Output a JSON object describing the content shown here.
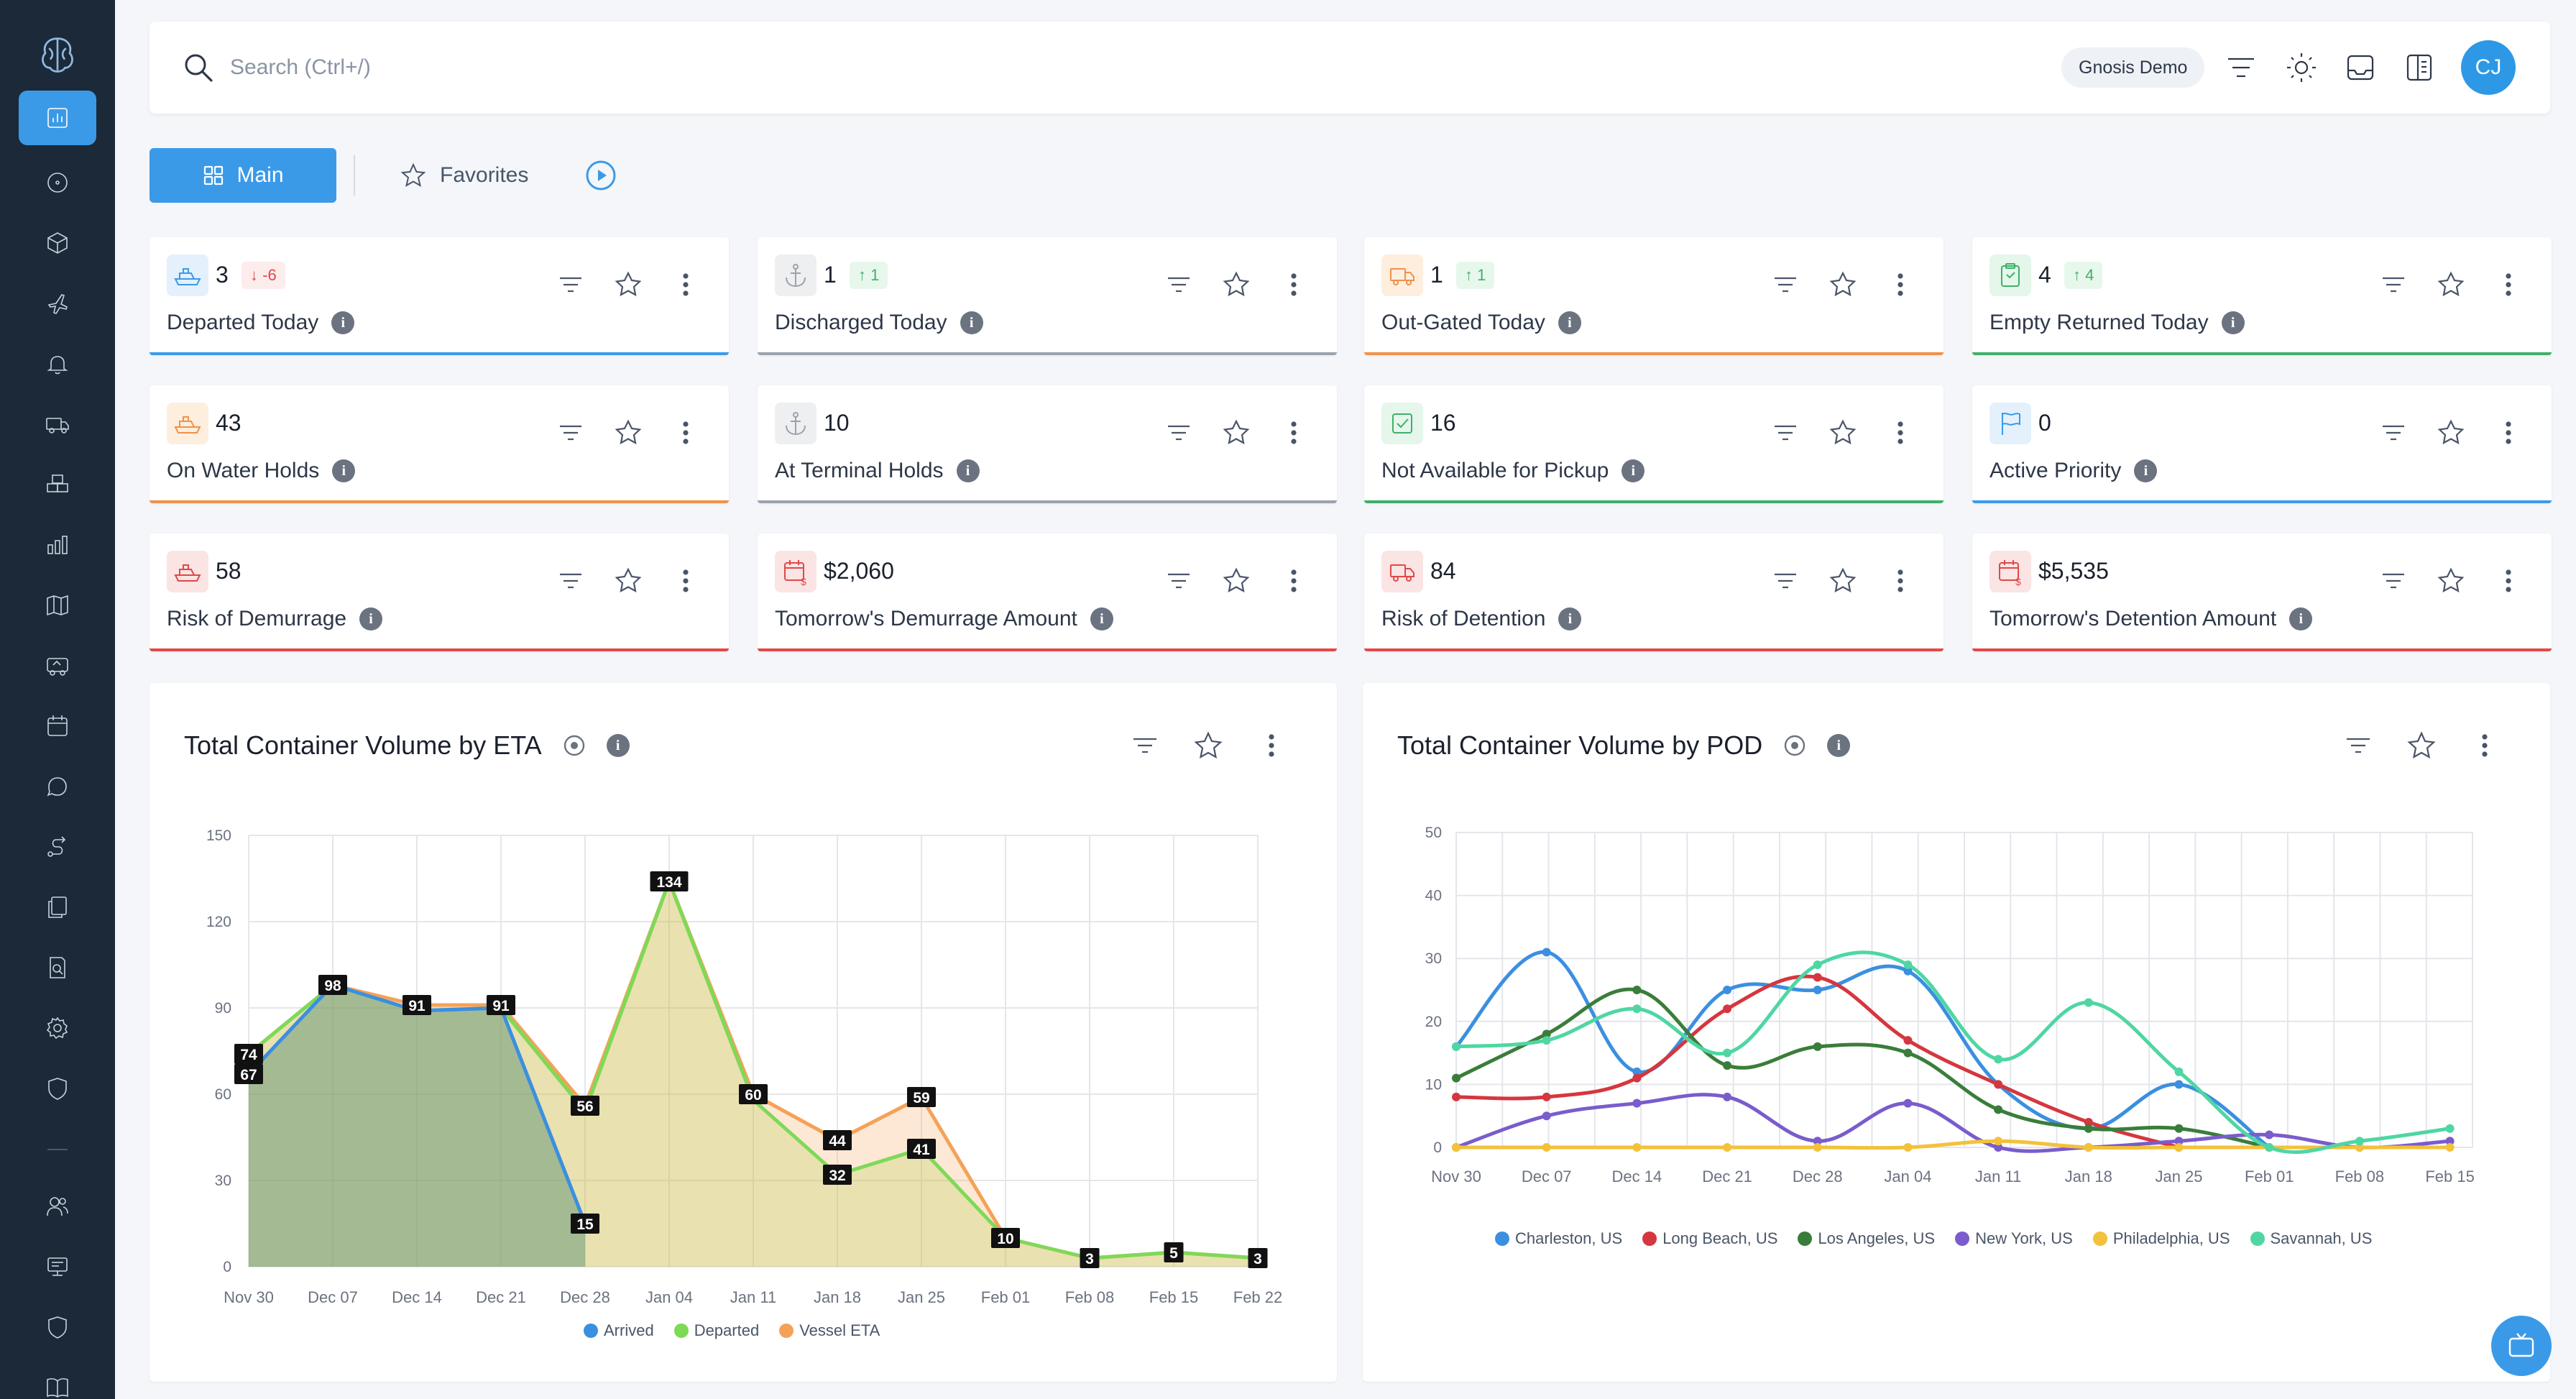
{
  "search": {
    "placeholder": "Search (Ctrl+/)"
  },
  "header": {
    "org": "Gnosis Demo",
    "avatar_initials": "CJ"
  },
  "tabs": {
    "main": "Main",
    "favorites": "Favorites"
  },
  "sidebar_icons": [
    "logo-brain-icon",
    "dashboard-icon",
    "compass-icon",
    "package-icon",
    "plane-icon",
    "bell-icon",
    "truck-icon",
    "containers-icon",
    "bar-chart-icon",
    "map-icon",
    "shipment-icon",
    "calendar-icon",
    "chat-icon",
    "route-icon",
    "documents-icon",
    "report-search-icon",
    "settings-icon",
    "shield-icon",
    "users-icon",
    "monitor-icon",
    "shield-check-icon",
    "book-icon"
  ],
  "kpis": [
    {
      "value": "3",
      "delta": "-6",
      "delta_dir": "down",
      "label": "Departed Today",
      "color": "#3b9ae8",
      "icon": "ship-icon"
    },
    {
      "value": "1",
      "delta": "1",
      "delta_dir": "up",
      "label": "Discharged Today",
      "color": "#9aa3ad",
      "icon": "anchor-icon"
    },
    {
      "value": "1",
      "delta": "1",
      "delta_dir": "up",
      "label": "Out-Gated Today",
      "color": "#f0914a",
      "icon": "truck-icon"
    },
    {
      "value": "4",
      "delta": "4",
      "delta_dir": "up",
      "label": "Empty Returned Today",
      "color": "#3fb06a",
      "icon": "clipboard-icon"
    },
    {
      "value": "43",
      "delta": "",
      "delta_dir": "",
      "label": "On Water Holds",
      "color": "#f0914a",
      "icon": "ship-icon"
    },
    {
      "value": "10",
      "delta": "",
      "delta_dir": "",
      "label": "At Terminal Holds",
      "color": "#9aa3ad",
      "icon": "anchor-icon"
    },
    {
      "value": "16",
      "delta": "",
      "delta_dir": "",
      "label": "Not Available for Pickup",
      "color": "#3fb06a",
      "icon": "checkbox-icon"
    },
    {
      "value": "0",
      "delta": "",
      "delta_dir": "",
      "label": "Active Priority",
      "color": "#3b9ae8",
      "icon": "flag-icon"
    },
    {
      "value": "58",
      "delta": "",
      "delta_dir": "",
      "label": "Risk of Demurrage",
      "color": "#e04848",
      "icon": "ship-icon"
    },
    {
      "value": "$2,060",
      "delta": "",
      "delta_dir": "",
      "label": "Tomorrow's Demurrage Amount",
      "color": "#e04848",
      "icon": "calendar-money-icon"
    },
    {
      "value": "84",
      "delta": "",
      "delta_dir": "",
      "label": "Risk of Detention",
      "color": "#e04848",
      "icon": "truck-icon"
    },
    {
      "value": "$5,535",
      "delta": "",
      "delta_dir": "",
      "label": "Tomorrow's Detention Amount",
      "color": "#e04848",
      "icon": "calendar-money-icon"
    }
  ],
  "charts": {
    "eta_title": "Total Container Volume by ETA",
    "pod_title": "Total Container Volume by POD"
  },
  "chart_data": [
    {
      "type": "area",
      "title": "Total Container Volume by ETA",
      "categories": [
        "Nov 30",
        "Dec 07",
        "Dec 14",
        "Dec 21",
        "Dec 28",
        "Jan 04",
        "Jan 11",
        "Jan 18",
        "Jan 25",
        "Feb 01",
        "Feb 08",
        "Feb 15",
        "Feb 22"
      ],
      "ylim": [
        0,
        150
      ],
      "yticks": [
        0,
        30,
        60,
        90,
        120,
        150
      ],
      "series": [
        {
          "name": "Arrived",
          "color": "#3b8fe0",
          "values": [
            67,
            98,
            89,
            90,
            15,
            null,
            null,
            null,
            null,
            null,
            null,
            null,
            null
          ]
        },
        {
          "name": "Departed",
          "color": "#7ed957",
          "values": [
            74,
            98,
            89,
            90,
            54,
            134,
            58,
            32,
            41,
            10,
            3,
            5,
            3
          ]
        },
        {
          "name": "Vessel ETA",
          "color": "#f4a258",
          "values": [
            74,
            98,
            91,
            91,
            56,
            134,
            60,
            44,
            59,
            10,
            3,
            5,
            3
          ]
        }
      ],
      "labels": [
        {
          "i": 0,
          "v": 74,
          "text": "74"
        },
        {
          "i": 0,
          "v": 67,
          "text": "67"
        },
        {
          "i": 1,
          "v": 98,
          "text": "98"
        },
        {
          "i": 2,
          "v": 91,
          "text": "91"
        },
        {
          "i": 3,
          "v": 91,
          "text": "91"
        },
        {
          "i": 4,
          "v": 56,
          "text": "56"
        },
        {
          "i": 4,
          "v": 15,
          "text": "15"
        },
        {
          "i": 5,
          "v": 134,
          "text": "134"
        },
        {
          "i": 6,
          "v": 60,
          "text": "60"
        },
        {
          "i": 7,
          "v": 44,
          "text": "44"
        },
        {
          "i": 7,
          "v": 32,
          "text": "32"
        },
        {
          "i": 8,
          "v": 59,
          "text": "59"
        },
        {
          "i": 8,
          "v": 41,
          "text": "41"
        },
        {
          "i": 9,
          "v": 10,
          "text": "10"
        },
        {
          "i": 10,
          "v": 3,
          "text": "3"
        },
        {
          "i": 11,
          "v": 5,
          "text": "5"
        },
        {
          "i": 12,
          "v": 3,
          "text": "3"
        }
      ],
      "legend": "bottom"
    },
    {
      "type": "line",
      "title": "Total Container Volume by POD",
      "categories": [
        "Nov 30",
        "Dec 07",
        "Dec 14",
        "Dec 21",
        "Dec 28",
        "Jan 04",
        "Jan 11",
        "Jan 18",
        "Jan 25",
        "Feb 01",
        "Feb 08",
        "Feb 15"
      ],
      "x_points": 23,
      "ylim": [
        0,
        50
      ],
      "yticks": [
        0,
        10,
        20,
        30,
        40,
        50
      ],
      "series": [
        {
          "name": "Charleston, US",
          "color": "#3b8fe0",
          "values": [
            16,
            31,
            12,
            25,
            25,
            28,
            10,
            3,
            10,
            0,
            null,
            null
          ]
        },
        {
          "name": "Long Beach, US",
          "color": "#d6363f",
          "values": [
            8,
            8,
            11,
            22,
            27,
            17,
            10,
            4,
            0,
            null,
            null,
            null
          ]
        },
        {
          "name": "Los Angeles, US",
          "color": "#3a7d3a",
          "values": [
            11,
            18,
            25,
            13,
            16,
            15,
            6,
            3,
            3,
            0,
            null,
            null
          ]
        },
        {
          "name": "New York, US",
          "color": "#7a5ccc",
          "values": [
            0,
            5,
            7,
            8,
            1,
            7,
            0,
            0,
            1,
            2,
            0,
            1
          ]
        },
        {
          "name": "Philadelphia, US",
          "color": "#f3c13a",
          "values": [
            0,
            0,
            0,
            0,
            0,
            0,
            1,
            0,
            0,
            0,
            0,
            0
          ]
        },
        {
          "name": "Savannah, US",
          "color": "#4fd6a3",
          "values": [
            16,
            17,
            22,
            15,
            29,
            29,
            14,
            23,
            12,
            0,
            1,
            3
          ]
        }
      ],
      "legend": "bottom"
    }
  ]
}
